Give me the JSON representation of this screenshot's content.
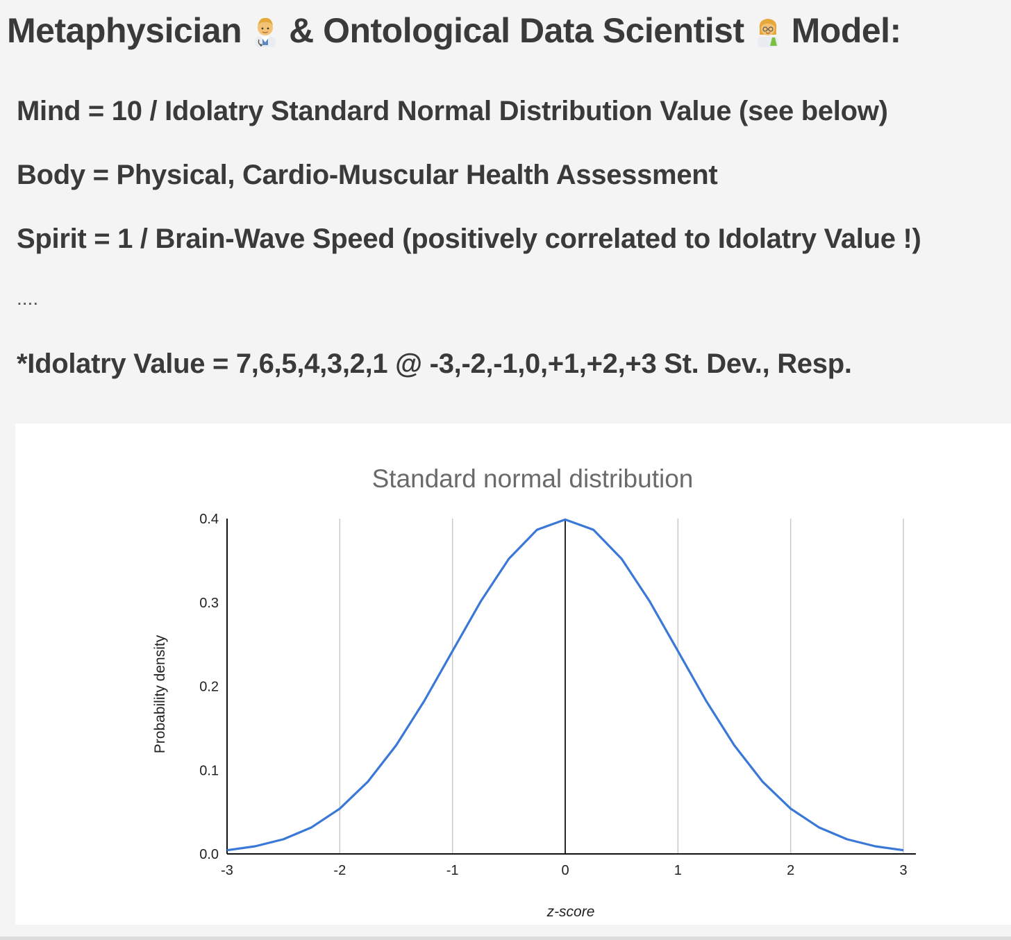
{
  "heading": {
    "part1": "Metaphysician",
    "part2": "& Ontological Data Scientist",
    "part3": "Model:",
    "icon1": "man-health-worker-icon",
    "icon2": "woman-scientist-icon"
  },
  "lines": {
    "mind": "Mind = 10 / Idolatry Standard Normal Distribution Value (see below)",
    "body": "Body = Physical, Cardio-Muscular Health Assessment",
    "spirit": "Spirit = 1 / Brain-Wave Speed (positively correlated to Idolatry Value !)",
    "dots": "....",
    "idolatry": "*Idolatry Value = 7,6,5,4,3,2,1 @ -3,-2,-1,0,+1,+2,+3 St. Dev., Resp."
  },
  "colors": {
    "curve": "#3a78d8",
    "text": "#3a3a3a",
    "grid": "#c8c8c8"
  },
  "chart_data": {
    "type": "line",
    "title": "Standard normal distribution",
    "xlabel": "z-score",
    "ylabel": "Probability density",
    "xlim": [
      -3,
      3
    ],
    "ylim": [
      0,
      0.4
    ],
    "x_ticks": [
      "-3",
      "-2",
      "-1",
      "0",
      "1",
      "2",
      "3"
    ],
    "y_ticks": [
      "0.0",
      "0.1",
      "0.2",
      "0.3",
      "0.4"
    ],
    "grid": "vertical",
    "series": [
      {
        "x": [
          -3,
          -2.75,
          -2.5,
          -2.25,
          -2,
          -1.75,
          -1.5,
          -1.25,
          -1,
          -0.75,
          -0.5,
          -0.25,
          0,
          0.25,
          0.5,
          0.75,
          1,
          1.25,
          1.5,
          1.75,
          2,
          2.25,
          2.5,
          2.75,
          3
        ],
        "y": [
          0.0044,
          0.0091,
          0.0175,
          0.0317,
          0.054,
          0.0863,
          0.1295,
          0.1826,
          0.242,
          0.3011,
          0.3521,
          0.3867,
          0.3989,
          0.3867,
          0.3521,
          0.3011,
          0.242,
          0.1826,
          0.1295,
          0.0863,
          0.054,
          0.0317,
          0.0175,
          0.0091,
          0.0044
        ]
      }
    ]
  }
}
